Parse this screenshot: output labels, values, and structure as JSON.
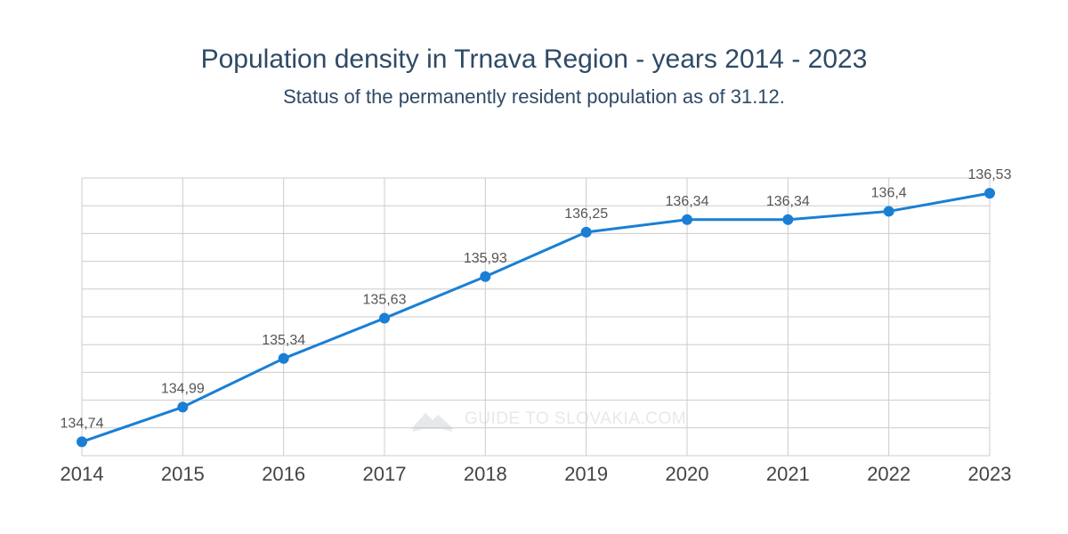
{
  "title": "Population density in Trnava Region - years 2014 - 2023",
  "subtitle": "Status of the permanently resident population as of 31.12.",
  "watermark": "GUIDE TO SLOVAKIA.COM",
  "chart_data": {
    "type": "line",
    "title": "Population density in Trnava Region - years 2014 - 2023",
    "subtitle": "Status of the permanently resident population as of 31.12.",
    "xlabel": "",
    "ylabel": "",
    "categories": [
      "2014",
      "2015",
      "2016",
      "2017",
      "2018",
      "2019",
      "2020",
      "2021",
      "2022",
      "2023"
    ],
    "values": [
      134.74,
      134.99,
      135.34,
      135.63,
      135.93,
      136.25,
      136.34,
      136.34,
      136.4,
      136.53
    ],
    "data_labels": [
      "134,74",
      "134,99",
      "135,34",
      "135,63",
      "135,93",
      "136,25",
      "136,34",
      "136,34",
      "136,4",
      "136,53"
    ],
    "ylim": [
      134.64,
      136.64
    ],
    "grid": true,
    "legend": "none",
    "colors": {
      "line": "#1a7fd4",
      "grid": "#cccccc",
      "label": "#555555",
      "axis_text": "#444444"
    }
  }
}
